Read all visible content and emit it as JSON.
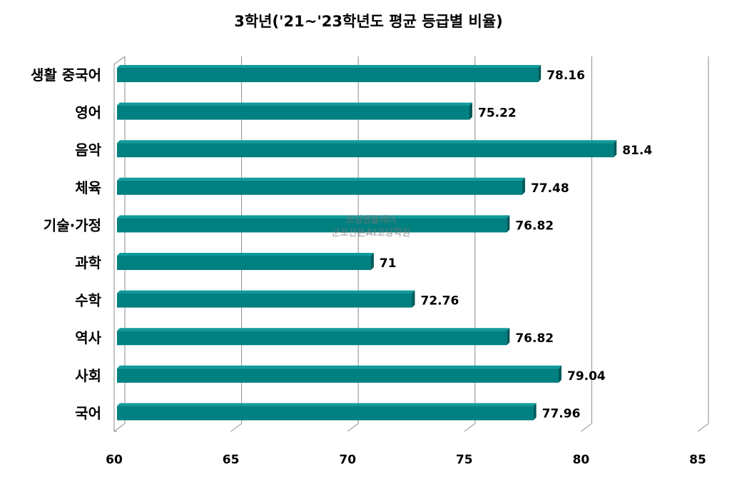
{
  "chart_data": {
    "type": "bar",
    "orientation": "horizontal",
    "title": "3학년('21~'23학년도 평균 등급별 비율)",
    "categories": [
      "생활 중국어",
      "영어",
      "음악",
      "체육",
      "기술·가정",
      "과학",
      "수학",
      "역사",
      "사회",
      "국어"
    ],
    "values": [
      78.16,
      75.22,
      81.4,
      77.48,
      76.82,
      71,
      72.76,
      76.82,
      79.04,
      77.96
    ],
    "data_labels": [
      "78.16",
      "75.22",
      "81.4",
      "77.48",
      "76.82",
      "71",
      "72.76",
      "76.82",
      "79.04",
      "77.96"
    ],
    "xlim": [
      60,
      85
    ],
    "x_ticks": [
      "60",
      "65",
      "70",
      "75",
      "80",
      "85"
    ],
    "grid": true,
    "colors": {
      "bar": "#008080",
      "bar_top": "#0f9a9a",
      "bar_end": "#005a5a",
      "grid": "#8c8c8c"
    }
  },
  "watermark": {
    "line1": "코딩앤플레이",
    "line2": "군포산본AI코딩학원"
  }
}
